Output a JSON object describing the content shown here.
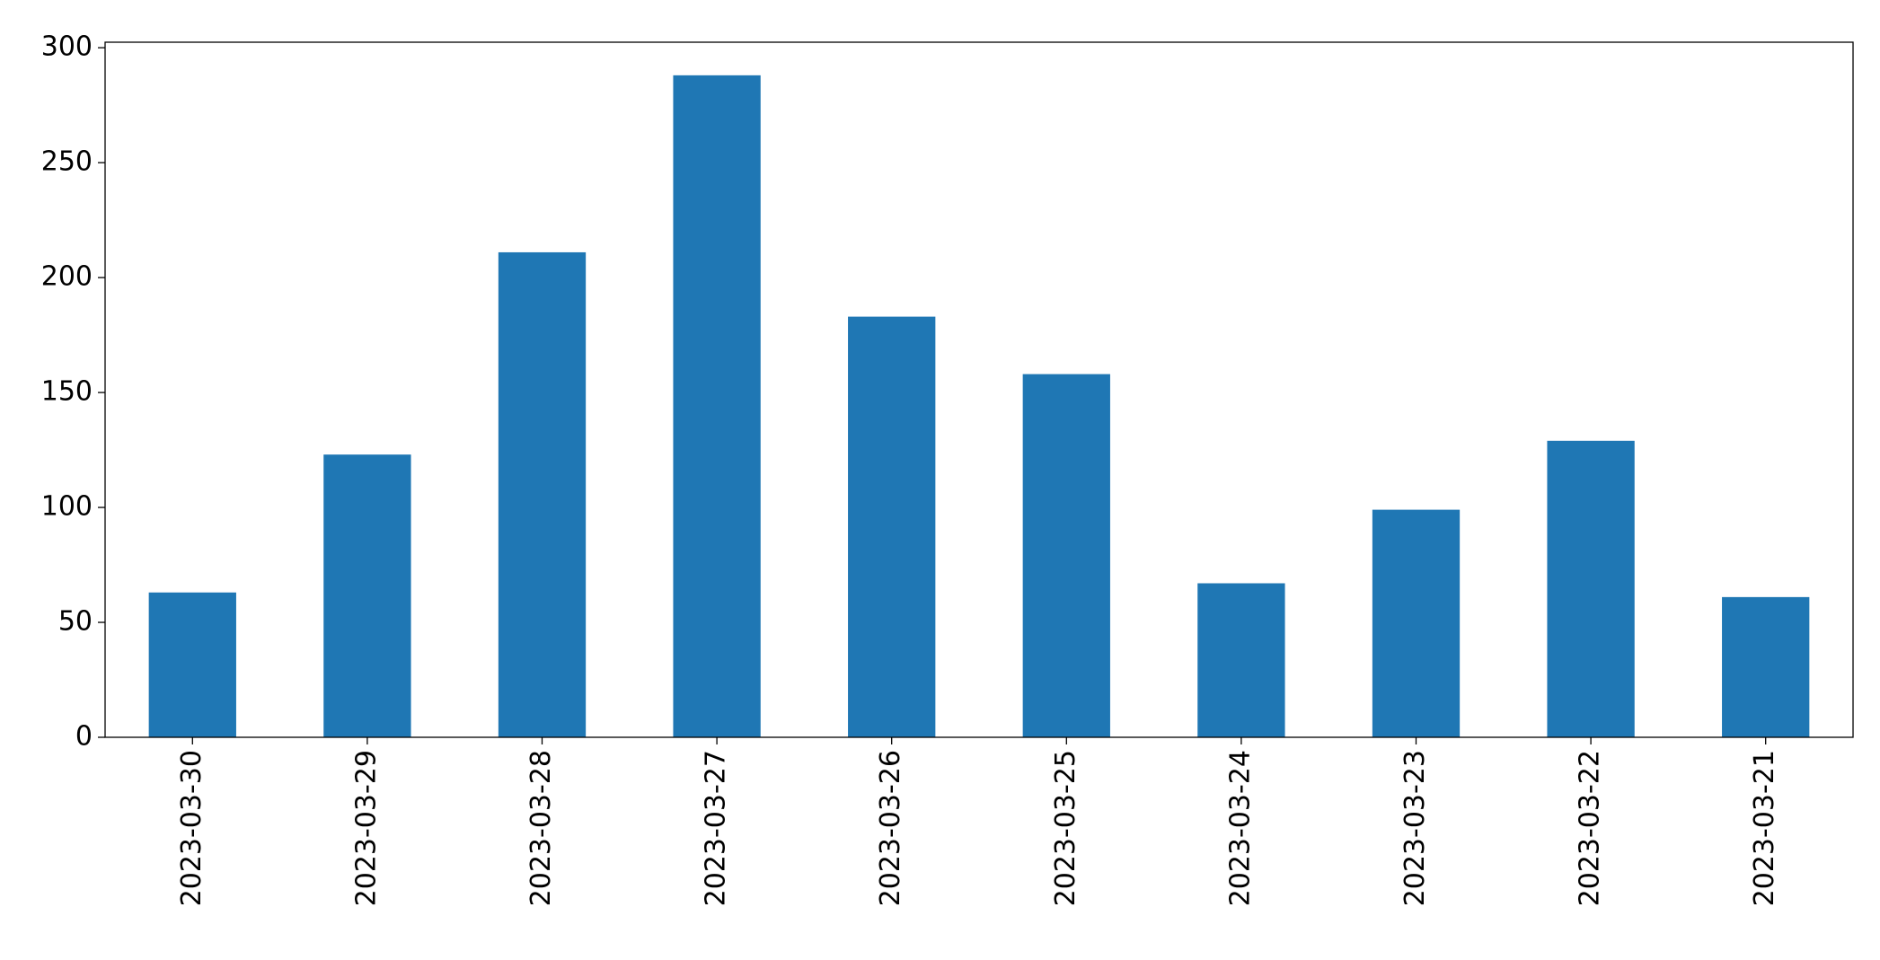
{
  "chart_data": {
    "type": "bar",
    "categories": [
      "2023-03-30",
      "2023-03-29",
      "2023-03-28",
      "2023-03-27",
      "2023-03-26",
      "2023-03-25",
      "2023-03-24",
      "2023-03-23",
      "2023-03-22",
      "2023-03-21"
    ],
    "values": [
      63,
      123,
      211,
      288,
      183,
      158,
      67,
      99,
      129,
      61
    ],
    "color": "#1f77b4",
    "ylim": [
      0,
      302.4
    ],
    "yticks": [
      0,
      50,
      100,
      150,
      200,
      250,
      300
    ],
    "grid": false
  }
}
